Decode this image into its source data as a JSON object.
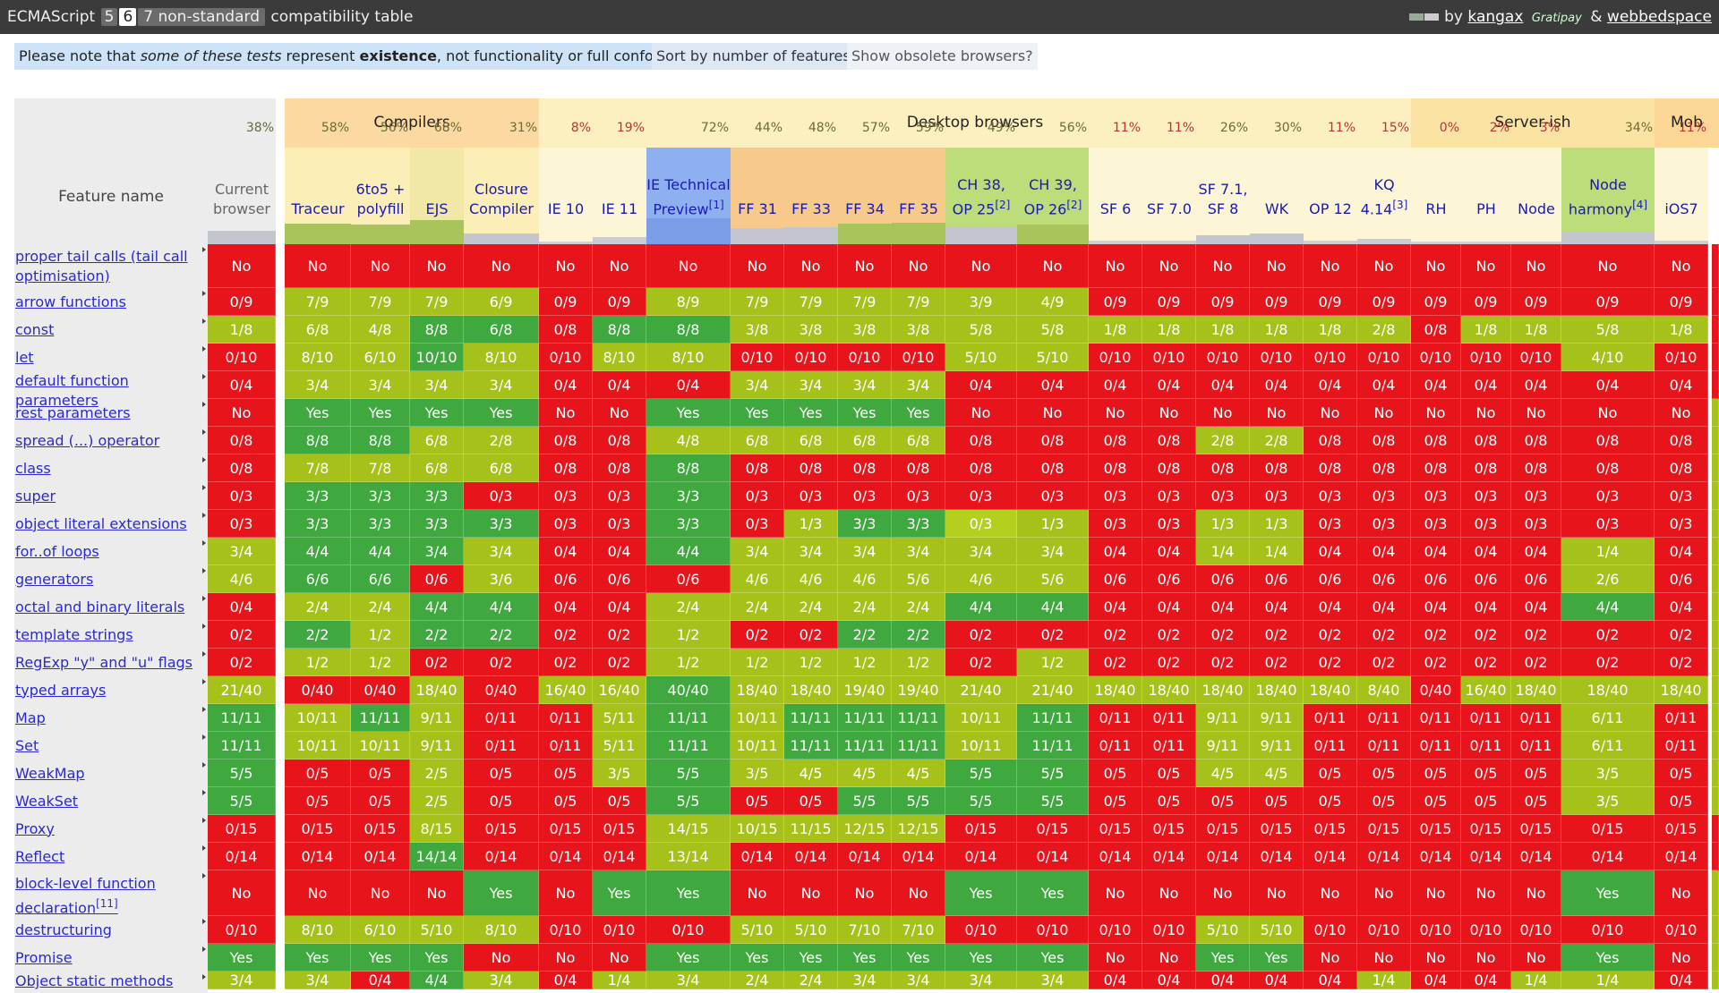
{
  "header": {
    "brand": "ECMAScript",
    "versions": [
      "5",
      "6",
      "7 non-standard"
    ],
    "selected_version": "6",
    "suffix": "compatibility table",
    "credit_by": "by",
    "author1": "kangax",
    "gratipay": "Gratipay",
    "amp": "&",
    "author2": "webbedspace"
  },
  "notes": {
    "note_part1": "Please note that ",
    "note_em": "some of these tests",
    "note_part2": " represent ",
    "note_strong": "existence",
    "note_part3": ", not functionality or full conformance.",
    "sort_button": "Sort by number of features?",
    "obsolete_button": "Show obsolete browsers?"
  },
  "table": {
    "feature_header": "Feature name",
    "groups": [
      {
        "label": "Compilers",
        "kind": "compilers"
      },
      {
        "label": "Desktop browsers",
        "kind": "desktop"
      },
      {
        "label": "Server-ish",
        "kind": "server"
      },
      {
        "label": "Mob",
        "kind": "mobile"
      }
    ],
    "columns": [
      {
        "name": "Current browser",
        "pct": "38%",
        "group": "none",
        "score": 0.38
      },
      {
        "name": "Traceur",
        "pct": "58%",
        "group": "compilers",
        "score": 0.58
      },
      {
        "name": "6to5 + polyfill",
        "pct": "56%",
        "group": "compilers",
        "score": 0.56
      },
      {
        "name": "EJS",
        "pct": "68%",
        "group": "compilers",
        "score": 0.68
      },
      {
        "name": "Closure Compiler",
        "pct": "31%",
        "group": "compilers",
        "score": 0.31
      },
      {
        "name": "IE 10",
        "pct": "8%",
        "group": "desktop",
        "score": 0.08
      },
      {
        "name": "IE 11",
        "pct": "19%",
        "group": "desktop",
        "score": 0.19
      },
      {
        "name": "IE Technical Preview",
        "sup": "[1]",
        "pct": "72%",
        "group": "desktop",
        "score": 0.72
      },
      {
        "name": "FF 31",
        "pct": "44%",
        "group": "desktop",
        "score": 0.44
      },
      {
        "name": "FF 33",
        "pct": "48%",
        "group": "desktop",
        "score": 0.48
      },
      {
        "name": "FF 34",
        "pct": "57%",
        "group": "desktop",
        "score": 0.57
      },
      {
        "name": "FF 35",
        "pct": "59%",
        "group": "desktop",
        "score": 0.59
      },
      {
        "name": "CH 38, OP 25",
        "sup": "[2]",
        "pct": "49%",
        "group": "desktop",
        "score": 0.49
      },
      {
        "name": "CH 39, OP 26",
        "sup": "[2]",
        "pct": "56%",
        "group": "desktop",
        "score": 0.56
      },
      {
        "name": "SF 6",
        "pct": "11%",
        "group": "desktop",
        "score": 0.11
      },
      {
        "name": "SF 7.0",
        "pct": "11%",
        "group": "desktop",
        "score": 0.11
      },
      {
        "name": "SF 7.1, SF 8",
        "pct": "26%",
        "group": "desktop",
        "score": 0.26
      },
      {
        "name": "WK",
        "pct": "30%",
        "group": "desktop",
        "score": 0.3
      },
      {
        "name": "OP 12",
        "pct": "11%",
        "group": "desktop",
        "score": 0.11
      },
      {
        "name": "KQ 4.14",
        "sup": "[3]",
        "pct": "15%",
        "group": "desktop",
        "score": 0.15
      },
      {
        "name": "RH",
        "pct": "0%",
        "group": "server",
        "score": 0.0
      },
      {
        "name": "PH",
        "pct": "2%",
        "group": "server",
        "score": 0.02
      },
      {
        "name": "Node",
        "pct": "3%",
        "group": "server",
        "score": 0.03
      },
      {
        "name": "Node harmony",
        "sup": "[4]",
        "pct": "34%",
        "group": "server",
        "score": 0.34
      },
      {
        "name": "iOS7",
        "pct": "11%",
        "group": "mobile",
        "score": 0.11
      }
    ],
    "colors": {
      "red": "#e8141c",
      "yellow": "#a7c11b",
      "green": "#3fa83f"
    },
    "rows": [
      {
        "feature": "proper tail calls (tail call optimisation)",
        "values": [
          "No",
          "No",
          "No",
          "No",
          "No",
          "No",
          "No",
          "No",
          "No",
          "No",
          "No",
          "No",
          "No",
          "No",
          "No",
          "No",
          "No",
          "No",
          "No",
          "No",
          "No",
          "No",
          "No",
          "No",
          "No"
        ],
        "colors": "rrrrrrrrrrrrrrrrrrrrrrrrr"
      },
      {
        "feature": "arrow functions",
        "values": [
          "0/9",
          "7/9",
          "7/9",
          "7/9",
          "6/9",
          "0/9",
          "0/9",
          "8/9",
          "7/9",
          "7/9",
          "7/9",
          "7/9",
          "3/9",
          "4/9",
          "0/9",
          "0/9",
          "0/9",
          "0/9",
          "0/9",
          "0/9",
          "0/9",
          "0/9",
          "0/9",
          "0/9",
          "0/9"
        ],
        "colors": "ryyyyrryyyyyyyrrrrrrrrrrr"
      },
      {
        "feature": "const",
        "values": [
          "1/8",
          "6/8",
          "4/8",
          "8/8",
          "6/8",
          "0/8",
          "8/8",
          "8/8",
          "3/8",
          "3/8",
          "3/8",
          "3/8",
          "5/8",
          "5/8",
          "1/8",
          "1/8",
          "1/8",
          "1/8",
          "1/8",
          "2/8",
          "0/8",
          "1/8",
          "1/8",
          "5/8",
          "1/8"
        ],
        "colors": "yyyggrggyyyyyyyyyyyyryyyy"
      },
      {
        "feature": "let",
        "values": [
          "0/10",
          "8/10",
          "6/10",
          "10/10",
          "8/10",
          "0/10",
          "8/10",
          "8/10",
          "0/10",
          "0/10",
          "0/10",
          "0/10",
          "5/10",
          "5/10",
          "0/10",
          "0/10",
          "0/10",
          "0/10",
          "0/10",
          "0/10",
          "0/10",
          "0/10",
          "0/10",
          "4/10",
          "0/10"
        ],
        "colors": "ryygyryyrrrryyrrrrrrrrryr"
      },
      {
        "feature": "default function parameters",
        "values": [
          "0/4",
          "3/4",
          "3/4",
          "3/4",
          "3/4",
          "0/4",
          "0/4",
          "0/4",
          "3/4",
          "3/4",
          "3/4",
          "3/4",
          "0/4",
          "0/4",
          "0/4",
          "0/4",
          "0/4",
          "0/4",
          "0/4",
          "0/4",
          "0/4",
          "0/4",
          "0/4",
          "0/4",
          "0/4"
        ],
        "colors": "ryyyyrrryyyyrrrrrrrrrrrrr"
      },
      {
        "feature": "rest parameters",
        "values": [
          "No",
          "Yes",
          "Yes",
          "Yes",
          "Yes",
          "No",
          "No",
          "Yes",
          "Yes",
          "Yes",
          "Yes",
          "Yes",
          "No",
          "No",
          "No",
          "No",
          "No",
          "No",
          "No",
          "No",
          "No",
          "No",
          "No",
          "No",
          "No"
        ],
        "colors": "rggggrrgggggrrrrrrrrrrrrr"
      },
      {
        "feature": "spread (...) operator",
        "values": [
          "0/8",
          "8/8",
          "8/8",
          "6/8",
          "2/8",
          "0/8",
          "0/8",
          "4/8",
          "6/8",
          "6/8",
          "6/8",
          "6/8",
          "0/8",
          "0/8",
          "0/8",
          "0/8",
          "2/8",
          "2/8",
          "0/8",
          "0/8",
          "0/8",
          "0/8",
          "0/8",
          "0/8",
          "0/8"
        ],
        "colors": "rggyyrryyyyyrrrryyrrrrrrr"
      },
      {
        "feature": "class",
        "values": [
          "0/8",
          "7/8",
          "7/8",
          "6/8",
          "6/8",
          "0/8",
          "0/8",
          "8/8",
          "0/8",
          "0/8",
          "0/8",
          "0/8",
          "0/8",
          "0/8",
          "0/8",
          "0/8",
          "0/8",
          "0/8",
          "0/8",
          "0/8",
          "0/8",
          "0/8",
          "0/8",
          "0/8",
          "0/8"
        ],
        "colors": "ryyyyrrgrrrrrrrrrrrrrrrrr"
      },
      {
        "feature": "super",
        "values": [
          "0/3",
          "3/3",
          "3/3",
          "3/3",
          "0/3",
          "0/3",
          "0/3",
          "3/3",
          "0/3",
          "0/3",
          "0/3",
          "0/3",
          "0/3",
          "0/3",
          "0/3",
          "0/3",
          "0/3",
          "0/3",
          "0/3",
          "0/3",
          "0/3",
          "0/3",
          "0/3",
          "0/3",
          "0/3"
        ],
        "colors": "rgggrrrgrrrrrrrrrrrrrrrrr"
      },
      {
        "feature": "object literal extensions",
        "values": [
          "0/3",
          "3/3",
          "3/3",
          "3/3",
          "3/3",
          "0/3",
          "0/3",
          "3/3",
          "0/3",
          "1/3",
          "3/3",
          "3/3",
          "0/3",
          "1/3",
          "0/3",
          "0/3",
          "1/3",
          "1/3",
          "0/3",
          "0/3",
          "0/3",
          "0/3",
          "0/3",
          "0/3",
          "0/3"
        ],
        "colors": "rggggrrgrygglyrryyrrrrrrr"
      },
      {
        "feature": "for..of loops",
        "values": [
          "3/4",
          "4/4",
          "4/4",
          "3/4",
          "3/4",
          "0/4",
          "0/4",
          "4/4",
          "3/4",
          "3/4",
          "3/4",
          "3/4",
          "3/4",
          "3/4",
          "0/4",
          "0/4",
          "1/4",
          "1/4",
          "0/4",
          "0/4",
          "0/4",
          "0/4",
          "0/4",
          "1/4",
          "0/4"
        ],
        "colors": "ygggyrrgyyyyyyrryyrrrrryr"
      },
      {
        "feature": "generators",
        "values": [
          "4/6",
          "6/6",
          "6/6",
          "0/6",
          "3/6",
          "0/6",
          "0/6",
          "0/6",
          "4/6",
          "4/6",
          "4/6",
          "5/6",
          "4/6",
          "5/6",
          "0/6",
          "0/6",
          "0/6",
          "0/6",
          "0/6",
          "0/6",
          "0/6",
          "0/6",
          "0/6",
          "2/6",
          "0/6"
        ],
        "colors": "yggryrrryyyyyyrrrrrrrrryr"
      },
      {
        "feature": "octal and binary literals",
        "values": [
          "0/4",
          "2/4",
          "2/4",
          "4/4",
          "4/4",
          "0/4",
          "0/4",
          "2/4",
          "2/4",
          "2/4",
          "2/4",
          "2/4",
          "4/4",
          "4/4",
          "0/4",
          "0/4",
          "0/4",
          "0/4",
          "0/4",
          "0/4",
          "0/4",
          "0/4",
          "0/4",
          "4/4",
          "0/4"
        ],
        "colors": "ryyggrryyyyyggrrrrrrrrrgr"
      },
      {
        "feature": "template strings",
        "values": [
          "0/2",
          "2/2",
          "1/2",
          "2/2",
          "2/2",
          "0/2",
          "0/2",
          "1/2",
          "0/2",
          "0/2",
          "2/2",
          "2/2",
          "0/2",
          "0/2",
          "0/2",
          "0/2",
          "0/2",
          "0/2",
          "0/2",
          "0/2",
          "0/2",
          "0/2",
          "0/2",
          "0/2",
          "0/2"
        ],
        "colors": "rgyggrryrrggrrrrrrrrrrrrr"
      },
      {
        "feature": "RegExp \"y\" and \"u\" flags",
        "values": [
          "0/2",
          "1/2",
          "1/2",
          "0/2",
          "0/2",
          "0/2",
          "0/2",
          "1/2",
          "1/2",
          "1/2",
          "1/2",
          "1/2",
          "0/2",
          "1/2",
          "0/2",
          "0/2",
          "0/2",
          "0/2",
          "0/2",
          "0/2",
          "0/2",
          "0/2",
          "0/2",
          "0/2",
          "0/2"
        ],
        "colors": "ryyrrrryyyyyryrrrrrrrrrrr"
      },
      {
        "feature": "typed arrays",
        "values": [
          "21/40",
          "0/40",
          "0/40",
          "18/40",
          "0/40",
          "16/40",
          "16/40",
          "40/40",
          "18/40",
          "18/40",
          "19/40",
          "19/40",
          "21/40",
          "21/40",
          "18/40",
          "18/40",
          "18/40",
          "18/40",
          "18/40",
          "8/40",
          "0/40",
          "16/40",
          "18/40",
          "18/40",
          "18/40"
        ],
        "colors": "yrryryygyyyyyyyyyyyyryyyy"
      },
      {
        "feature": "Map",
        "values": [
          "11/11",
          "10/11",
          "11/11",
          "9/11",
          "0/11",
          "0/11",
          "5/11",
          "11/11",
          "10/11",
          "11/11",
          "11/11",
          "11/11",
          "10/11",
          "11/11",
          "0/11",
          "0/11",
          "9/11",
          "9/11",
          "0/11",
          "0/11",
          "0/11",
          "0/11",
          "0/11",
          "6/11",
          "0/11"
        ],
        "colors": "gygyrrygygggygrryyrrrrryr"
      },
      {
        "feature": "Set",
        "values": [
          "11/11",
          "10/11",
          "10/11",
          "9/11",
          "0/11",
          "0/11",
          "5/11",
          "11/11",
          "10/11",
          "11/11",
          "11/11",
          "11/11",
          "10/11",
          "11/11",
          "0/11",
          "0/11",
          "9/11",
          "9/11",
          "0/11",
          "0/11",
          "0/11",
          "0/11",
          "0/11",
          "6/11",
          "0/11"
        ],
        "colors": "gyyyrrygygggygrryyrrrrryr"
      },
      {
        "feature": "WeakMap",
        "values": [
          "5/5",
          "0/5",
          "0/5",
          "2/5",
          "0/5",
          "0/5",
          "3/5",
          "5/5",
          "3/5",
          "4/5",
          "4/5",
          "4/5",
          "5/5",
          "5/5",
          "0/5",
          "0/5",
          "4/5",
          "4/5",
          "0/5",
          "0/5",
          "0/5",
          "0/5",
          "0/5",
          "3/5",
          "0/5"
        ],
        "colors": "grryrrygyyyyggrryyrrrrryr"
      },
      {
        "feature": "WeakSet",
        "values": [
          "5/5",
          "0/5",
          "0/5",
          "2/5",
          "0/5",
          "0/5",
          "0/5",
          "5/5",
          "0/5",
          "0/5",
          "5/5",
          "5/5",
          "5/5",
          "5/5",
          "0/5",
          "0/5",
          "0/5",
          "0/5",
          "0/5",
          "0/5",
          "0/5",
          "0/5",
          "0/5",
          "3/5",
          "0/5"
        ],
        "colors": "grryrrrgrrggggrrrrrrrrryr"
      },
      {
        "feature": "Proxy",
        "values": [
          "0/15",
          "0/15",
          "0/15",
          "8/15",
          "0/15",
          "0/15",
          "0/15",
          "14/15",
          "10/15",
          "11/15",
          "12/15",
          "12/15",
          "0/15",
          "0/15",
          "0/15",
          "0/15",
          "0/15",
          "0/15",
          "0/15",
          "0/15",
          "0/15",
          "0/15",
          "0/15",
          "0/15",
          "0/15"
        ],
        "colors": "rrryrrryyyyyrrrrrrrrrrrrr"
      },
      {
        "feature": "Reflect",
        "values": [
          "0/14",
          "0/14",
          "0/14",
          "14/14",
          "0/14",
          "0/14",
          "0/14",
          "13/14",
          "0/14",
          "0/14",
          "0/14",
          "0/14",
          "0/14",
          "0/14",
          "0/14",
          "0/14",
          "0/14",
          "0/14",
          "0/14",
          "0/14",
          "0/14",
          "0/14",
          "0/14",
          "0/14",
          "0/14"
        ],
        "colors": "rrrgrrryrrrrrrrrrrrrrrrrr"
      },
      {
        "feature": "block-level function declaration",
        "sup": "[11]",
        "values": [
          "No",
          "No",
          "No",
          "No",
          "Yes",
          "No",
          "Yes",
          "Yes",
          "No",
          "No",
          "No",
          "No",
          "Yes",
          "Yes",
          "No",
          "No",
          "No",
          "No",
          "No",
          "No",
          "No",
          "No",
          "No",
          "Yes",
          "No"
        ],
        "colors": "rrrrgrggrrrrggrrrrrrrrrgr"
      },
      {
        "feature": "destructuring",
        "values": [
          "0/10",
          "8/10",
          "6/10",
          "5/10",
          "8/10",
          "0/10",
          "0/10",
          "0/10",
          "5/10",
          "5/10",
          "7/10",
          "7/10",
          "0/10",
          "0/10",
          "0/10",
          "0/10",
          "5/10",
          "5/10",
          "0/10",
          "0/10",
          "0/10",
          "0/10",
          "0/10",
          "0/10",
          "0/10"
        ],
        "colors": "ryyyyrrryyyyrrrryyrrrrrrr"
      },
      {
        "feature": "Promise",
        "values": [
          "Yes",
          "Yes",
          "Yes",
          "Yes",
          "No",
          "No",
          "No",
          "Yes",
          "Yes",
          "Yes",
          "Yes",
          "Yes",
          "Yes",
          "Yes",
          "No",
          "No",
          "Yes",
          "Yes",
          "No",
          "No",
          "No",
          "No",
          "No",
          "Yes",
          "No"
        ],
        "colors": "ggggrrrgggggggrrggrrrrrgr"
      },
      {
        "feature": "Object static methods",
        "values": [
          "3/4",
          "3/4",
          "0/4",
          "4/4",
          "3/4",
          "0/4",
          "1/4",
          "3/4",
          "2/4",
          "2/4",
          "3/4",
          "3/4",
          "3/4",
          "3/4",
          "0/4",
          "0/4",
          "0/4",
          "0/4",
          "0/4",
          "1/4",
          "0/4",
          "0/4",
          "1/4",
          "1/4",
          "0/4"
        ],
        "colors": "yyrgyryyyyyyyyrrrrryrryyr"
      }
    ]
  }
}
